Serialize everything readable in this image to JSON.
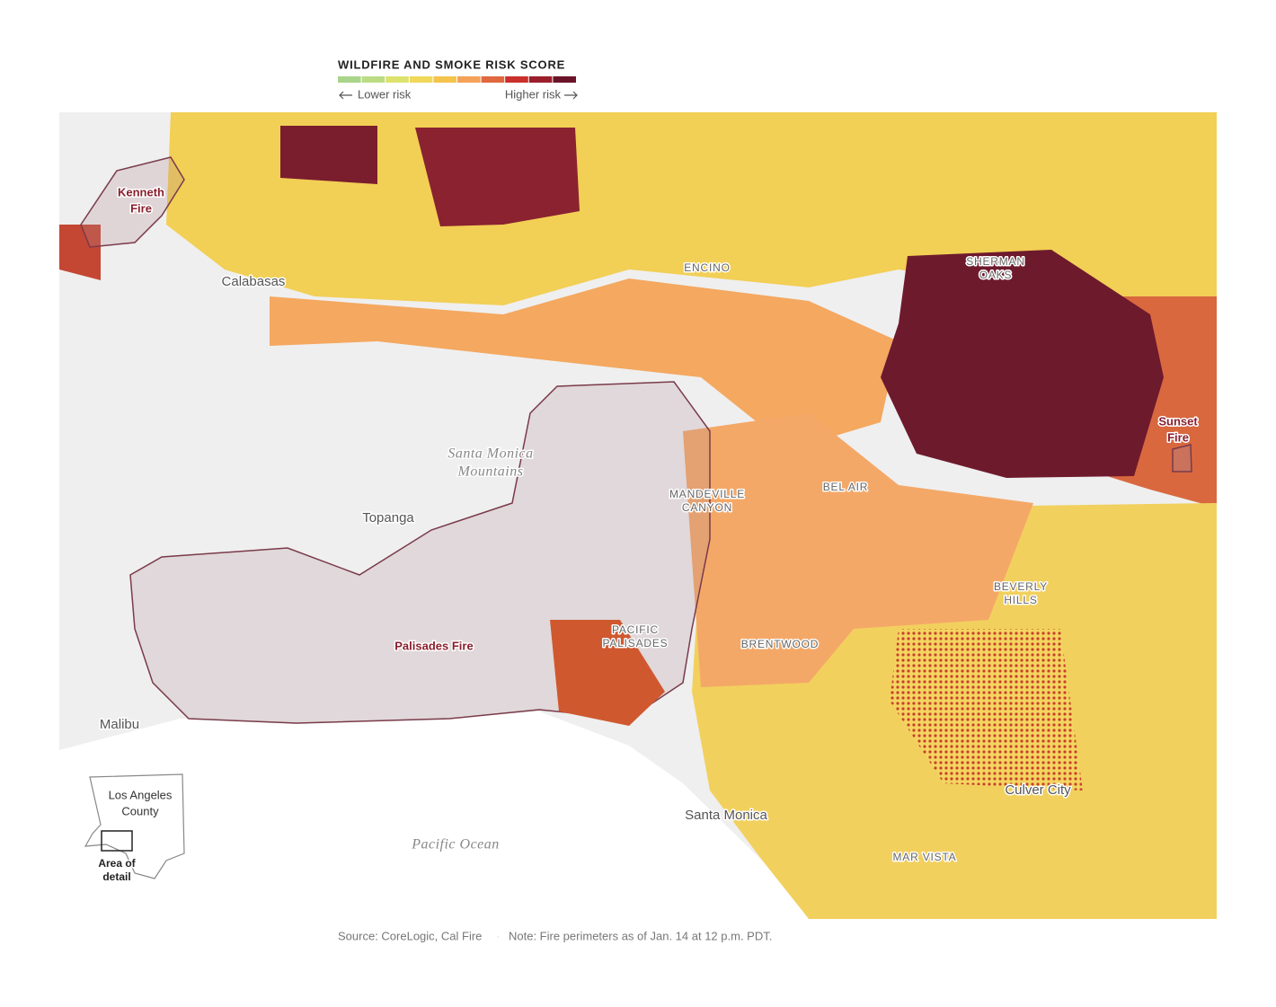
{
  "legend": {
    "title": "WILDFIRE AND SMOKE RISK SCORE",
    "low": "Lower risk",
    "high": "Higher risk",
    "colors": [
      "#a8d58a",
      "#bcdc84",
      "#dde26c",
      "#f0d85a",
      "#f5c44c",
      "#f4a15a",
      "#e0693f",
      "#c9302c",
      "#9b1f2b",
      "#6b1429"
    ]
  },
  "labels": [
    {
      "lines": [
        "Kenneth",
        "Fire"
      ]
    },
    {
      "lines": [
        "Calabasas"
      ]
    },
    {
      "lines": [
        "ENCINO"
      ]
    },
    {
      "lines": [
        "SHERMAN",
        "OAKS"
      ]
    },
    {
      "lines": [
        "Sunset",
        "Fire"
      ]
    },
    {
      "lines": [
        "Santa Monica",
        "Mountains"
      ]
    },
    {
      "lines": [
        "MANDEVILLE",
        "CANYON"
      ]
    },
    {
      "lines": [
        "BEL AIR"
      ]
    },
    {
      "lines": [
        "Topanga"
      ]
    },
    {
      "lines": [
        "PACIFIC",
        "PALISADES"
      ]
    },
    {
      "lines": [
        "Palisades Fire"
      ]
    },
    {
      "lines": [
        "BRENTWOOD"
      ]
    },
    {
      "lines": [
        "BEVERLY",
        "HILLS"
      ]
    },
    {
      "lines": [
        "Malibu"
      ]
    },
    {
      "lines": [
        "Santa Monica"
      ]
    },
    {
      "lines": [
        "Culver City"
      ]
    },
    {
      "lines": [
        "MAR VISTA"
      ]
    },
    {
      "lines": [
        "Pacific Ocean"
      ]
    }
  ],
  "inset": {
    "county": [
      "Los Angeles",
      "County"
    ],
    "detail": [
      "Area of",
      "detail"
    ]
  },
  "footer": {
    "source": "Source: CoreLogic, Cal Fire",
    "note": "Note: Fire perimeters as of Jan. 14 at 12 p.m. PDT."
  }
}
